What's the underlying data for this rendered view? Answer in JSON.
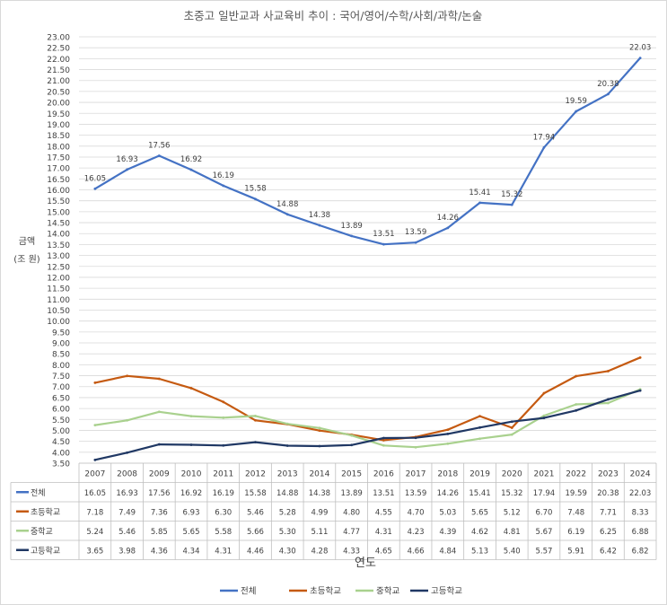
{
  "chart_data": {
    "type": "line",
    "title": "초중고 일반교과 사교육비 추이 : 국어/영어/수학/사회/과학/논술",
    "xlabel": "연도",
    "ylabel_line1": "금액",
    "ylabel_line2": "(조 원)",
    "ylim": [
      3.5,
      23.0
    ],
    "ytick_step": 0.5,
    "grid": true,
    "legend_position": "bottom",
    "data_table": true,
    "categories": [
      "2007",
      "2008",
      "2009",
      "2010",
      "2011",
      "2012",
      "2013",
      "2014",
      "2015",
      "2016",
      "2017",
      "2018",
      "2019",
      "2020",
      "2021",
      "2022",
      "2023",
      "2024"
    ],
    "series": [
      {
        "name": "전체",
        "color": "#4472C4",
        "labeled": true,
        "values": [
          16.05,
          16.93,
          17.56,
          16.92,
          16.19,
          15.58,
          14.88,
          14.38,
          13.89,
          13.51,
          13.59,
          14.26,
          15.41,
          15.32,
          17.94,
          19.59,
          20.38,
          22.03
        ],
        "labels": [
          "16.05",
          "16.93",
          "17.56",
          "16.92",
          "16.19",
          "15.58",
          "14.88",
          "14.38",
          "13.89",
          "13.51",
          "13.59",
          "14.26",
          "15.41",
          "15.32",
          "17.94",
          "19.59",
          "20.38",
          "22.03"
        ]
      },
      {
        "name": "초등학교",
        "color": "#C55A11",
        "labeled": false,
        "values": [
          7.18,
          7.49,
          7.36,
          6.93,
          6.3,
          5.46,
          5.28,
          4.99,
          4.8,
          4.55,
          4.7,
          5.03,
          5.65,
          5.12,
          6.7,
          7.48,
          7.71,
          8.33
        ],
        "labels": [
          "7.18",
          "7.49",
          "7.36",
          "6.93",
          "6.30",
          "5.46",
          "5.28",
          "4.99",
          "4.80",
          "4.55",
          "4.70",
          "5.03",
          "5.65",
          "5.12",
          "6.70",
          "7.48",
          "7.71",
          "8.33"
        ]
      },
      {
        "name": "중학교",
        "color": "#A9D18E",
        "labeled": false,
        "values": [
          5.24,
          5.46,
          5.85,
          5.65,
          5.58,
          5.66,
          5.3,
          5.11,
          4.77,
          4.31,
          4.23,
          4.39,
          4.62,
          4.81,
          5.67,
          6.19,
          6.25,
          6.88
        ],
        "labels": [
          "5.24",
          "5.46",
          "5.85",
          "5.65",
          "5.58",
          "5.66",
          "5.30",
          "5.11",
          "4.77",
          "4.31",
          "4.23",
          "4.39",
          "4.62",
          "4.81",
          "5.67",
          "6.19",
          "6.25",
          "6.88"
        ]
      },
      {
        "name": "고등학교",
        "color": "#203864",
        "labeled": false,
        "values": [
          3.65,
          3.98,
          4.36,
          4.34,
          4.31,
          4.46,
          4.3,
          4.28,
          4.33,
          4.65,
          4.66,
          4.84,
          5.13,
          5.4,
          5.57,
          5.91,
          6.42,
          6.82
        ],
        "labels": [
          "3.65",
          "3.98",
          "4.36",
          "4.34",
          "4.31",
          "4.46",
          "4.30",
          "4.28",
          "4.33",
          "4.65",
          "4.66",
          "4.84",
          "5.13",
          "5.40",
          "5.57",
          "5.91",
          "6.42",
          "6.82"
        ]
      }
    ]
  }
}
